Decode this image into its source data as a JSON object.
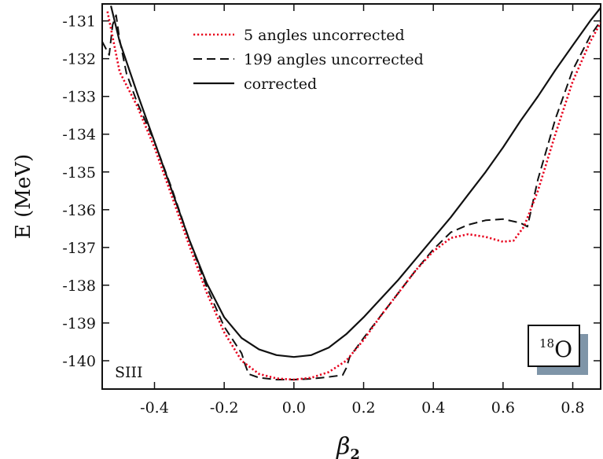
{
  "chart_data": {
    "type": "line",
    "xlabel": "β",
    "xlabel_sub": "2",
    "ylabel": "E (MeV)",
    "xlim": [
      -0.55,
      0.88
    ],
    "ylim": [
      -140.75,
      -130.55
    ],
    "x_ticks": [
      -0.4,
      -0.2,
      0.0,
      0.2,
      0.4,
      0.6,
      0.8
    ],
    "x_tick_labels": [
      "-0.4",
      "-0.2",
      "0.0",
      "0.2",
      "0.4",
      "0.6",
      "0.8"
    ],
    "y_ticks": [
      -131,
      -132,
      -133,
      -134,
      -135,
      -136,
      -137,
      -138,
      -139,
      -140
    ],
    "y_tick_labels": [
      "-131",
      "-132",
      "-133",
      "-134",
      "-135",
      "-136",
      "-137",
      "-138",
      "-139",
      "-140"
    ],
    "legend_position": "top-center",
    "interaction_label": "SIII",
    "nucleus": {
      "mass_number": "18",
      "symbol": "O"
    },
    "series": [
      {
        "name": "5 angles uncorrected",
        "style": "dotted",
        "color": "#e8001c",
        "x": [
          -0.535,
          -0.5,
          -0.45,
          -0.4,
          -0.35,
          -0.3,
          -0.25,
          -0.2,
          -0.15,
          -0.1,
          -0.05,
          0.0,
          0.05,
          0.1,
          0.15,
          0.2,
          0.25,
          0.3,
          0.35,
          0.4,
          0.45,
          0.5,
          0.55,
          0.6,
          0.63,
          0.66,
          0.7,
          0.75,
          0.8,
          0.85,
          0.88
        ],
        "y": [
          -130.75,
          -132.35,
          -133.25,
          -134.35,
          -135.65,
          -136.95,
          -138.2,
          -139.25,
          -140.0,
          -140.35,
          -140.47,
          -140.5,
          -140.45,
          -140.3,
          -140.0,
          -139.45,
          -138.8,
          -138.2,
          -137.6,
          -137.1,
          -136.75,
          -136.65,
          -136.72,
          -136.85,
          -136.82,
          -136.45,
          -135.5,
          -134.0,
          -132.6,
          -131.55,
          -131.05
        ]
      },
      {
        "name": "199 angles uncorrected",
        "style": "dashed",
        "color": "#111111",
        "x": [
          -0.55,
          -0.53,
          -0.52,
          -0.51,
          -0.5,
          -0.48,
          -0.45,
          -0.4,
          -0.35,
          -0.3,
          -0.25,
          -0.2,
          -0.15,
          -0.14,
          -0.13,
          -0.1,
          -0.05,
          0.0,
          0.05,
          0.1,
          0.14,
          0.15,
          0.16,
          0.2,
          0.25,
          0.3,
          0.35,
          0.4,
          0.45,
          0.5,
          0.55,
          0.6,
          0.65,
          0.67,
          0.7,
          0.75,
          0.8,
          0.85,
          0.88
        ],
        "y": [
          -131.55,
          -131.9,
          -131.1,
          -130.85,
          -131.5,
          -132.4,
          -133.15,
          -134.2,
          -135.45,
          -136.8,
          -138.05,
          -139.1,
          -139.8,
          -140.1,
          -140.35,
          -140.45,
          -140.5,
          -140.5,
          -140.48,
          -140.43,
          -140.38,
          -140.2,
          -139.9,
          -139.4,
          -138.8,
          -138.2,
          -137.6,
          -137.05,
          -136.6,
          -136.4,
          -136.28,
          -136.25,
          -136.35,
          -136.45,
          -135.2,
          -133.6,
          -132.3,
          -131.4,
          -131.0
        ]
      },
      {
        "name": "corrected",
        "style": "solid",
        "color": "#111111",
        "x": [
          -0.525,
          -0.5,
          -0.45,
          -0.4,
          -0.35,
          -0.3,
          -0.25,
          -0.2,
          -0.15,
          -0.1,
          -0.05,
          0.0,
          0.05,
          0.1,
          0.15,
          0.2,
          0.25,
          0.3,
          0.35,
          0.4,
          0.45,
          0.5,
          0.55,
          0.6,
          0.65,
          0.7,
          0.75,
          0.8,
          0.85,
          0.88
        ],
        "y": [
          -130.6,
          -131.55,
          -132.9,
          -134.2,
          -135.5,
          -136.8,
          -137.95,
          -138.85,
          -139.4,
          -139.7,
          -139.85,
          -139.9,
          -139.85,
          -139.65,
          -139.3,
          -138.85,
          -138.35,
          -137.85,
          -137.3,
          -136.75,
          -136.2,
          -135.6,
          -135.0,
          -134.35,
          -133.65,
          -133.0,
          -132.3,
          -131.65,
          -131.0,
          -130.65
        ]
      }
    ]
  }
}
